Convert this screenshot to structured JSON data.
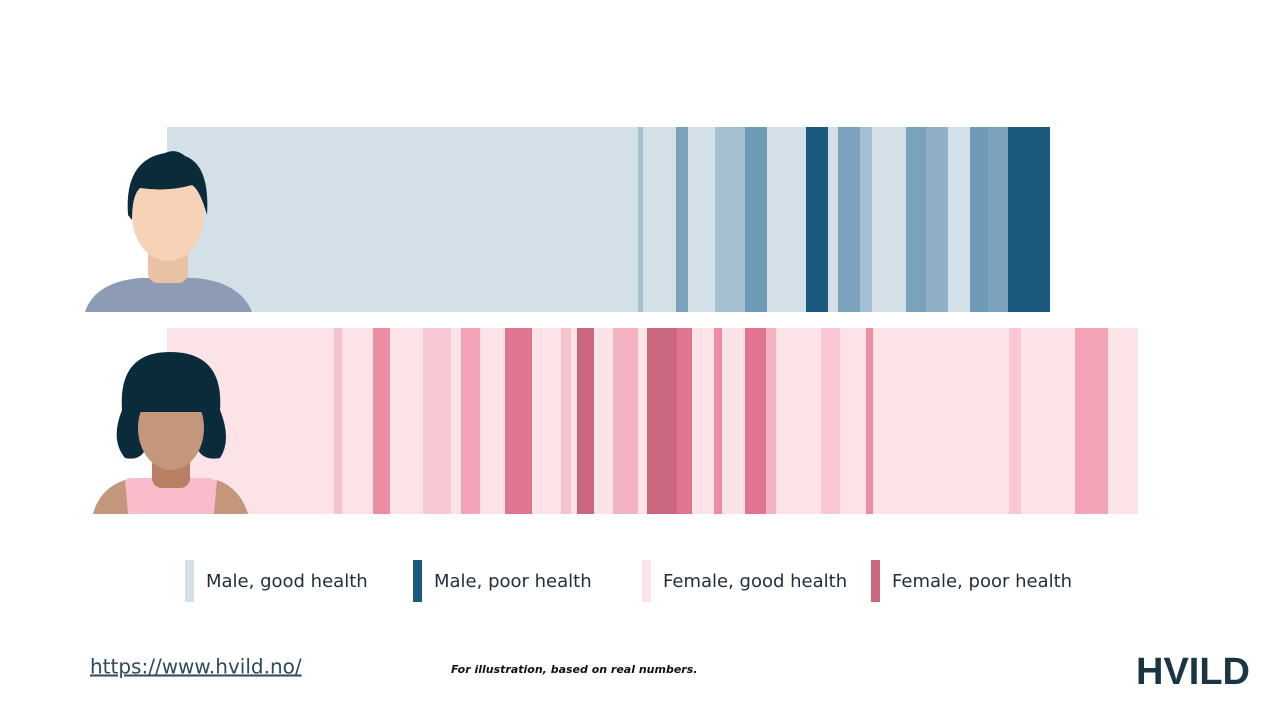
{
  "legend": [
    {
      "label": "Male, good health"
    },
    {
      "label": "Male, poor health"
    },
    {
      "label": "Female, good health"
    },
    {
      "label": "Female, poor health"
    }
  ],
  "footer": {
    "url": "https://www.hvild.no/",
    "note": "For illustration, based on real numbers.",
    "logo": "HVILD"
  }
}
